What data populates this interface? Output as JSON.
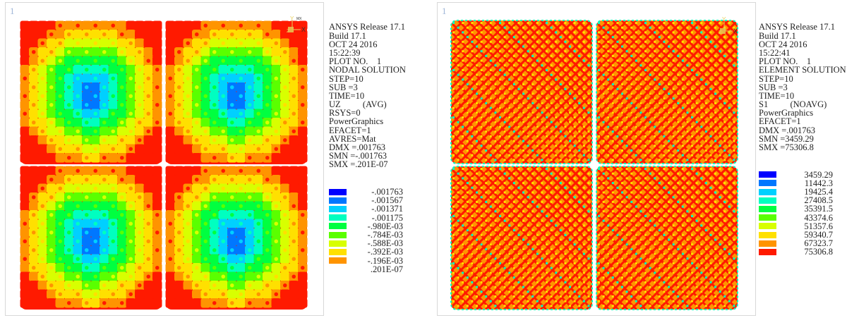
{
  "colors": {
    "contour": [
      "#0000ff",
      "#0077ff",
      "#00d0ff",
      "#00ffc0",
      "#00ff40",
      "#5aff00",
      "#d8ff00",
      "#ffe000",
      "#ff9400",
      "#ff1a00"
    ]
  },
  "left_panel": {
    "window_number": "1",
    "triad_labels": {
      "y": "Y",
      "z": "Z",
      "x": "X",
      "mx": "MX"
    },
    "info_lines": [
      "ANSYS Release 17.1",
      "Build 17.1",
      "OCT 24 2016",
      "15:22:39",
      "PLOT NO.    1",
      "NODAL SOLUTION",
      "STEP=10",
      "SUB =3",
      "TIME=10",
      "UZ          (AVG)",
      "RSYS=0",
      "PowerGraphics",
      "EFACET=1",
      "AVRES=Mat",
      "DMX =.001763",
      "SMN =-.001763",
      "SMX =.201E-07"
    ],
    "legend_values": [
      "-.001763",
      "-.001567",
      "-.001371",
      "-.001175",
      "-.980E-03",
      "-.784E-03",
      "-.588E-03",
      "-.392E-03",
      "-.196E-03"
    ],
    "legend_last": ".201E-07"
  },
  "right_panel": {
    "window_number": "1",
    "triad_labels": {
      "y": "Y",
      "z": "Z",
      "x": "X"
    },
    "info_lines": [
      "ANSYS Release 17.1",
      "Build 17.1",
      "OCT 24 2016",
      "15:22:41",
      "PLOT NO.    1",
      "ELEMENT SOLUTION",
      "STEP=10",
      "SUB =3",
      "TIME=10",
      "S1          (NOAVG)",
      "PowerGraphics",
      "EFACET=1",
      "DMX =.001763",
      "SMN =3459.29",
      "SMX =75306.8"
    ],
    "legend_values": [
      "3459.29",
      "11442.3",
      "19425.4",
      "27408.5",
      "35391.5",
      "43374.6",
      "51357.6",
      "59340.7",
      "67323.7",
      "75306.8"
    ]
  }
}
